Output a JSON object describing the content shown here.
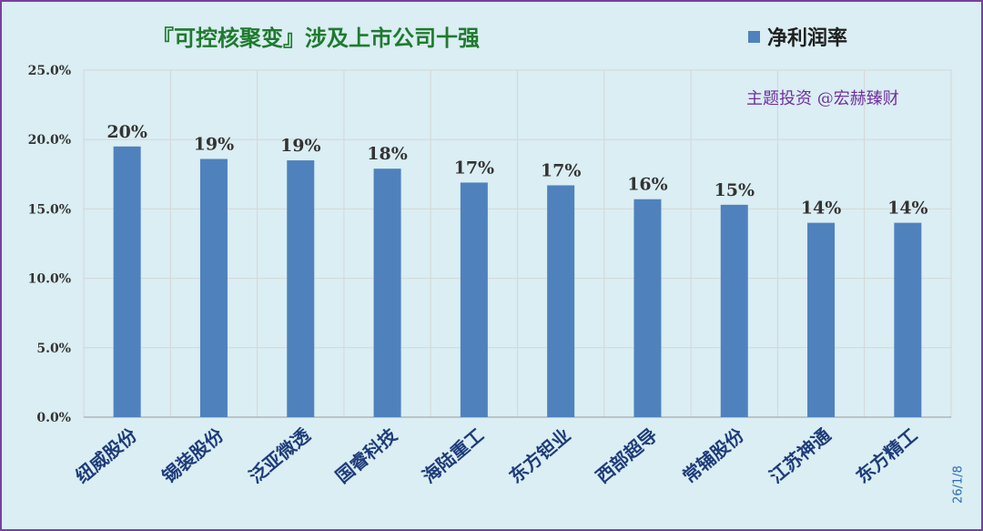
{
  "title": "『可控核聚变』涉及上市公司十强",
  "legend_label": "净利润率",
  "watermark": "主题投资 @宏赫臻财",
  "date_label": "26/1/8",
  "colors": {
    "bar": "#4f81bd",
    "background": "#daeef3",
    "border": "#7a3fa0",
    "title": "#1f7a2e",
    "watermark": "#7030a0",
    "category_label": "#1f3c7a",
    "date": "#2e6db4"
  },
  "chart_data": {
    "type": "bar",
    "title": "『可控核聚变』涉及上市公司十强",
    "categories": [
      "纽威股份",
      "锡装股份",
      "泛亚微透",
      "国睿科技",
      "海陆重工",
      "东方钽业",
      "西部超导",
      "常辅股份",
      "江苏神通",
      "东方精工"
    ],
    "series": [
      {
        "name": "净利润率",
        "values": [
          0.195,
          0.186,
          0.185,
          0.179,
          0.169,
          0.167,
          0.157,
          0.153,
          0.14,
          0.14
        ],
        "data_labels": [
          "20%",
          "19%",
          "19%",
          "18%",
          "17%",
          "17%",
          "16%",
          "15%",
          "14%",
          "14%"
        ]
      }
    ],
    "ylim": [
      0,
      0.25
    ],
    "y_ticks": [
      0,
      0.05,
      0.1,
      0.15,
      0.2,
      0.25
    ],
    "y_tick_labels": [
      "0.0%",
      "5.0%",
      "10.0%",
      "15.0%",
      "20.0%",
      "25.0%"
    ],
    "grid": true,
    "legend_position": "top-right"
  }
}
